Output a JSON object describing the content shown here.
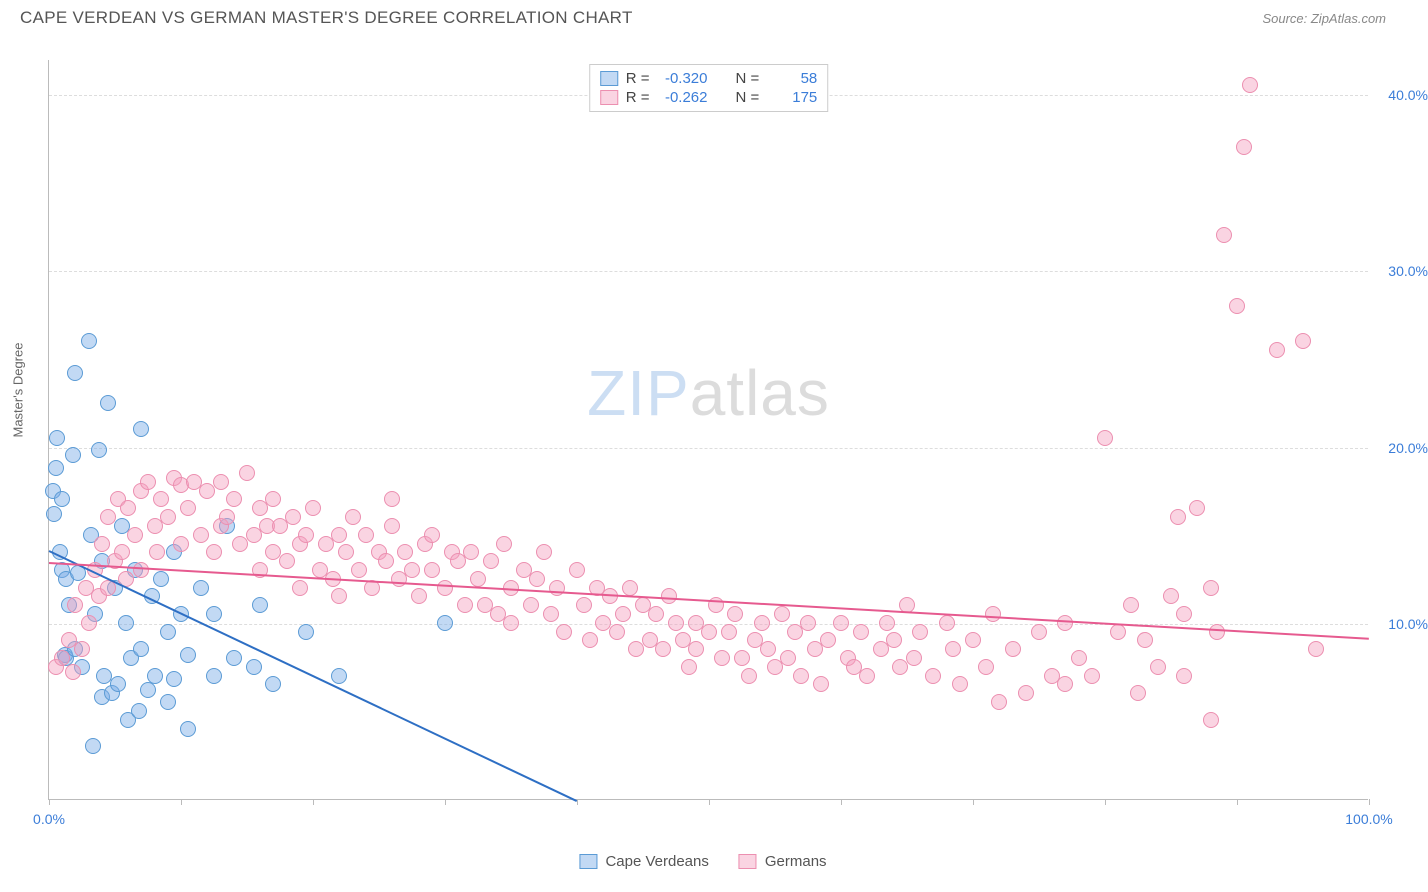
{
  "header": {
    "title": "CAPE VERDEAN VS GERMAN MASTER'S DEGREE CORRELATION CHART",
    "source": "Source: ZipAtlas.com"
  },
  "ylabel": "Master's Degree",
  "watermark": {
    "part1": "ZIP",
    "part2": "atlas"
  },
  "axes": {
    "xlim": [
      0,
      100
    ],
    "ylim": [
      0,
      42
    ],
    "yticks": [
      {
        "v": 10,
        "label": "10.0%"
      },
      {
        "v": 20,
        "label": "20.0%"
      },
      {
        "v": 30,
        "label": "30.0%"
      },
      {
        "v": 40,
        "label": "40.0%"
      }
    ],
    "xticks_major": [
      0,
      100
    ],
    "xtick_labels": {
      "0": "0.0%",
      "100": "100.0%"
    },
    "xticks_minor": [
      10,
      20,
      30,
      40,
      50,
      60,
      70,
      80,
      90
    ],
    "grid_color": "#dddddd",
    "axis_color": "#bbbbbb",
    "tick_label_color": "#3b7dd8",
    "tick_label_fontsize": 14
  },
  "series": [
    {
      "name": "Cape Verdeans",
      "fill": "rgba(120,170,230,0.45)",
      "stroke": "#5b9bd5",
      "line_color": "#2e6fc4",
      "marker_radius": 8,
      "R": "-0.320",
      "N": "58",
      "regression": {
        "x1": 0,
        "y1": 14.2,
        "x2": 40,
        "y2": 0
      },
      "points": [
        [
          0.3,
          17.5
        ],
        [
          0.4,
          16.2
        ],
        [
          0.5,
          18.8
        ],
        [
          0.6,
          20.5
        ],
        [
          0.8,
          14.0
        ],
        [
          1.0,
          13.0
        ],
        [
          1.0,
          17.0
        ],
        [
          1.2,
          8.2
        ],
        [
          1.3,
          8.0
        ],
        [
          1.3,
          12.5
        ],
        [
          1.5,
          11.0
        ],
        [
          1.8,
          19.5
        ],
        [
          2.0,
          24.2
        ],
        [
          2.0,
          8.5
        ],
        [
          2.2,
          12.8
        ],
        [
          2.5,
          7.5
        ],
        [
          3.0,
          26.0
        ],
        [
          3.2,
          15.0
        ],
        [
          3.3,
          3.0
        ],
        [
          3.5,
          10.5
        ],
        [
          3.8,
          19.8
        ],
        [
          4.0,
          5.8
        ],
        [
          4.0,
          13.5
        ],
        [
          4.2,
          7.0
        ],
        [
          4.5,
          22.5
        ],
        [
          4.8,
          6.0
        ],
        [
          5.0,
          12.0
        ],
        [
          5.2,
          6.5
        ],
        [
          5.5,
          15.5
        ],
        [
          5.8,
          10.0
        ],
        [
          6.0,
          4.5
        ],
        [
          6.2,
          8.0
        ],
        [
          6.5,
          13.0
        ],
        [
          6.8,
          5.0
        ],
        [
          7.0,
          8.5
        ],
        [
          7.0,
          21.0
        ],
        [
          7.5,
          6.2
        ],
        [
          7.8,
          11.5
        ],
        [
          8.0,
          7.0
        ],
        [
          8.5,
          12.5
        ],
        [
          9.0,
          5.5
        ],
        [
          9.0,
          9.5
        ],
        [
          9.5,
          14.0
        ],
        [
          9.5,
          6.8
        ],
        [
          10.0,
          10.5
        ],
        [
          10.5,
          8.2
        ],
        [
          10.5,
          4.0
        ],
        [
          11.5,
          12.0
        ],
        [
          12.5,
          10.5
        ],
        [
          12.5,
          7.0
        ],
        [
          13.5,
          15.5
        ],
        [
          14.0,
          8.0
        ],
        [
          15.5,
          7.5
        ],
        [
          16.0,
          11.0
        ],
        [
          17.0,
          6.5
        ],
        [
          19.5,
          9.5
        ],
        [
          22.0,
          7.0
        ],
        [
          30.0,
          10.0
        ]
      ]
    },
    {
      "name": "Germans",
      "fill": "rgba(245,160,190,0.45)",
      "stroke": "#ec8fb0",
      "line_color": "#e65a8f",
      "marker_radius": 8,
      "R": "-0.262",
      "N": "175",
      "regression": {
        "x1": 0,
        "y1": 13.5,
        "x2": 100,
        "y2": 9.2
      },
      "points": [
        [
          0.5,
          7.5
        ],
        [
          1.0,
          8.0
        ],
        [
          1.5,
          9.0
        ],
        [
          1.8,
          7.2
        ],
        [
          2.0,
          11.0
        ],
        [
          2.5,
          8.5
        ],
        [
          2.8,
          12.0
        ],
        [
          3.0,
          10.0
        ],
        [
          3.5,
          13.0
        ],
        [
          3.8,
          11.5
        ],
        [
          4.0,
          14.5
        ],
        [
          4.5,
          12.0
        ],
        [
          4.5,
          16.0
        ],
        [
          5.0,
          13.5
        ],
        [
          5.2,
          17.0
        ],
        [
          5.5,
          14.0
        ],
        [
          5.8,
          12.5
        ],
        [
          6.0,
          16.5
        ],
        [
          6.5,
          15.0
        ],
        [
          7.0,
          17.5
        ],
        [
          7.0,
          13.0
        ],
        [
          7.5,
          18.0
        ],
        [
          8.0,
          15.5
        ],
        [
          8.2,
          14.0
        ],
        [
          8.5,
          17.0
        ],
        [
          9.0,
          16.0
        ],
        [
          9.5,
          18.2
        ],
        [
          10.0,
          17.8
        ],
        [
          10.0,
          14.5
        ],
        [
          10.5,
          16.5
        ],
        [
          11.0,
          18.0
        ],
        [
          11.5,
          15.0
        ],
        [
          12.0,
          17.5
        ],
        [
          12.5,
          14.0
        ],
        [
          13.0,
          18.0
        ],
        [
          13.0,
          15.5
        ],
        [
          13.5,
          16.0
        ],
        [
          14.0,
          17.0
        ],
        [
          14.5,
          14.5
        ],
        [
          15.0,
          18.5
        ],
        [
          15.5,
          15.0
        ],
        [
          16.0,
          16.5
        ],
        [
          16.0,
          13.0
        ],
        [
          16.5,
          15.5
        ],
        [
          17.0,
          17.0
        ],
        [
          17.0,
          14.0
        ],
        [
          17.5,
          15.5
        ],
        [
          18.0,
          13.5
        ],
        [
          18.5,
          16.0
        ],
        [
          19.0,
          14.5
        ],
        [
          19.0,
          12.0
        ],
        [
          19.5,
          15.0
        ],
        [
          20.0,
          16.5
        ],
        [
          20.5,
          13.0
        ],
        [
          21.0,
          14.5
        ],
        [
          21.5,
          12.5
        ],
        [
          22.0,
          15.0
        ],
        [
          22.0,
          11.5
        ],
        [
          22.5,
          14.0
        ],
        [
          23.0,
          16.0
        ],
        [
          23.5,
          13.0
        ],
        [
          24.0,
          15.0
        ],
        [
          24.5,
          12.0
        ],
        [
          25.0,
          14.0
        ],
        [
          25.5,
          13.5
        ],
        [
          26.0,
          15.5
        ],
        [
          26.0,
          17.0
        ],
        [
          26.5,
          12.5
        ],
        [
          27.0,
          14.0
        ],
        [
          27.5,
          13.0
        ],
        [
          28.0,
          11.5
        ],
        [
          28.5,
          14.5
        ],
        [
          29.0,
          13.0
        ],
        [
          29.0,
          15.0
        ],
        [
          30.0,
          12.0
        ],
        [
          30.5,
          14.0
        ],
        [
          31.0,
          13.5
        ],
        [
          31.5,
          11.0
        ],
        [
          32.0,
          14.0
        ],
        [
          32.5,
          12.5
        ],
        [
          33.0,
          11.0
        ],
        [
          33.5,
          13.5
        ],
        [
          34.0,
          10.5
        ],
        [
          34.5,
          14.5
        ],
        [
          35.0,
          12.0
        ],
        [
          35.0,
          10.0
        ],
        [
          36.0,
          13.0
        ],
        [
          36.5,
          11.0
        ],
        [
          37.0,
          12.5
        ],
        [
          37.5,
          14.0
        ],
        [
          38.0,
          10.5
        ],
        [
          38.5,
          12.0
        ],
        [
          39.0,
          9.5
        ],
        [
          40.0,
          13.0
        ],
        [
          40.5,
          11.0
        ],
        [
          41.0,
          9.0
        ],
        [
          41.5,
          12.0
        ],
        [
          42.0,
          10.0
        ],
        [
          42.5,
          11.5
        ],
        [
          43.0,
          9.5
        ],
        [
          43.5,
          10.5
        ],
        [
          44.0,
          12.0
        ],
        [
          44.5,
          8.5
        ],
        [
          45.0,
          11.0
        ],
        [
          45.5,
          9.0
        ],
        [
          46.0,
          10.5
        ],
        [
          46.5,
          8.5
        ],
        [
          47.0,
          11.5
        ],
        [
          47.5,
          10.0
        ],
        [
          48.0,
          9.0
        ],
        [
          48.5,
          7.5
        ],
        [
          49.0,
          10.0
        ],
        [
          49.0,
          8.5
        ],
        [
          50.0,
          9.5
        ],
        [
          50.5,
          11.0
        ],
        [
          51.0,
          8.0
        ],
        [
          51.5,
          9.5
        ],
        [
          52.0,
          10.5
        ],
        [
          52.5,
          8.0
        ],
        [
          53.0,
          7.0
        ],
        [
          53.5,
          9.0
        ],
        [
          54.0,
          10.0
        ],
        [
          54.5,
          8.5
        ],
        [
          55.0,
          7.5
        ],
        [
          55.5,
          10.5
        ],
        [
          56.0,
          8.0
        ],
        [
          56.5,
          9.5
        ],
        [
          57.0,
          7.0
        ],
        [
          57.5,
          10.0
        ],
        [
          58.0,
          8.5
        ],
        [
          58.5,
          6.5
        ],
        [
          59.0,
          9.0
        ],
        [
          60.0,
          10.0
        ],
        [
          60.5,
          8.0
        ],
        [
          61.0,
          7.5
        ],
        [
          61.5,
          9.5
        ],
        [
          62.0,
          7.0
        ],
        [
          63.0,
          8.5
        ],
        [
          63.5,
          10.0
        ],
        [
          64.0,
          9.0
        ],
        [
          64.5,
          7.5
        ],
        [
          65.0,
          11.0
        ],
        [
          65.5,
          8.0
        ],
        [
          66.0,
          9.5
        ],
        [
          67.0,
          7.0
        ],
        [
          68.0,
          10.0
        ],
        [
          68.5,
          8.5
        ],
        [
          69.0,
          6.5
        ],
        [
          70.0,
          9.0
        ],
        [
          71.0,
          7.5
        ],
        [
          71.5,
          10.5
        ],
        [
          72.0,
          5.5
        ],
        [
          73.0,
          8.5
        ],
        [
          74.0,
          6.0
        ],
        [
          75.0,
          9.5
        ],
        [
          76.0,
          7.0
        ],
        [
          77.0,
          10.0
        ],
        [
          77.0,
          6.5
        ],
        [
          78.0,
          8.0
        ],
        [
          79.0,
          7.0
        ],
        [
          80.0,
          20.5
        ],
        [
          81.0,
          9.5
        ],
        [
          82.0,
          11.0
        ],
        [
          82.5,
          6.0
        ],
        [
          83.0,
          9.0
        ],
        [
          84.0,
          7.5
        ],
        [
          85.0,
          11.5
        ],
        [
          85.5,
          16.0
        ],
        [
          86.0,
          10.5
        ],
        [
          86.0,
          7.0
        ],
        [
          87.0,
          16.5
        ],
        [
          88.0,
          4.5
        ],
        [
          88.0,
          12.0
        ],
        [
          88.5,
          9.5
        ],
        [
          89.0,
          32.0
        ],
        [
          90.0,
          28.0
        ],
        [
          90.5,
          37.0
        ],
        [
          91.0,
          40.5
        ],
        [
          93.0,
          25.5
        ],
        [
          96.0,
          8.5
        ],
        [
          95.0,
          26.0
        ]
      ]
    }
  ],
  "bottom_legend": {
    "items": [
      "Cape Verdeans",
      "Germans"
    ]
  },
  "stats_box": {
    "r_label": "R =",
    "n_label": "N ="
  }
}
